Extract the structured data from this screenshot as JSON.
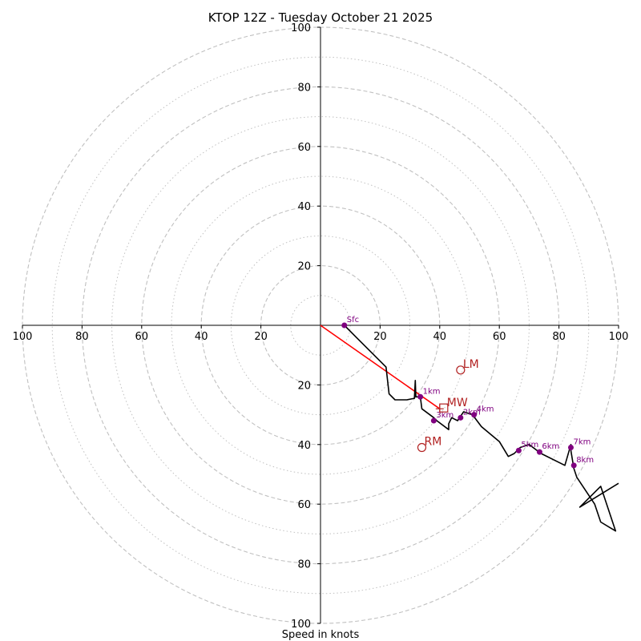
{
  "chart_data": {
    "type": "hodograph",
    "title": "KTOP 12Z - Tuesday October 21 2025",
    "xlabel": "Speed in knots",
    "axis_range": [
      -100,
      100
    ],
    "rings_major": [
      20,
      40,
      60,
      80,
      100
    ],
    "rings_minor": [
      10,
      30,
      50,
      70,
      90
    ],
    "x_ticks": [
      {
        "value": -100,
        "label": "100"
      },
      {
        "value": -80,
        "label": "80"
      },
      {
        "value": -60,
        "label": "60"
      },
      {
        "value": -40,
        "label": "40"
      },
      {
        "value": -20,
        "label": "20"
      },
      {
        "value": 20,
        "label": "20"
      },
      {
        "value": 40,
        "label": "40"
      },
      {
        "value": 60,
        "label": "60"
      },
      {
        "value": 80,
        "label": "80"
      },
      {
        "value": 100,
        "label": "100"
      }
    ],
    "y_ticks": [
      {
        "value": 100,
        "label": "100"
      },
      {
        "value": 80,
        "label": "80"
      },
      {
        "value": 60,
        "label": "60"
      },
      {
        "value": 40,
        "label": "40"
      },
      {
        "value": 20,
        "label": "20"
      },
      {
        "value": -20,
        "label": "20"
      },
      {
        "value": -40,
        "label": "40"
      },
      {
        "value": -60,
        "label": "60"
      },
      {
        "value": -80,
        "label": "80"
      },
      {
        "value": -100,
        "label": "100"
      }
    ],
    "hodograph_trace": [
      [
        8,
        0
      ],
      [
        12,
        -4
      ],
      [
        16,
        -8
      ],
      [
        22,
        -14
      ],
      [
        23,
        -23
      ],
      [
        25,
        -25
      ],
      [
        29,
        -25
      ],
      [
        31.5,
        -24.5
      ],
      [
        31.8,
        -18.5
      ],
      [
        32,
        -24
      ],
      [
        33.5,
        -24
      ],
      [
        34,
        -28
      ],
      [
        38,
        -31
      ],
      [
        39,
        -32
      ],
      [
        43,
        -35
      ],
      [
        43,
        -33
      ],
      [
        44,
        -31
      ],
      [
        46,
        -32
      ],
      [
        48,
        -29
      ],
      [
        51,
        -30
      ],
      [
        54,
        -34
      ],
      [
        60,
        -39
      ],
      [
        63,
        -44
      ],
      [
        65,
        -43
      ],
      [
        67,
        -41
      ],
      [
        70,
        -40
      ],
      [
        74,
        -43
      ],
      [
        82,
        -47
      ],
      [
        84,
        -40
      ],
      [
        84,
        -42
      ],
      [
        85,
        -48
      ],
      [
        86,
        -51
      ],
      [
        92,
        -60
      ],
      [
        94,
        -66
      ],
      [
        99,
        -69
      ],
      [
        94,
        -54
      ],
      [
        87,
        -61
      ],
      [
        100,
        -53
      ]
    ],
    "height_markers": [
      {
        "label": "Sfc",
        "u": 8,
        "v": 0
      },
      {
        "label": "1km",
        "u": 33.5,
        "v": -24
      },
      {
        "label": "2km",
        "u": 47,
        "v": -31
      },
      {
        "label": "3km",
        "u": 38,
        "v": -32
      },
      {
        "label": "4km",
        "u": 51.5,
        "v": -30
      },
      {
        "label": "5km",
        "u": 66.5,
        "v": -42
      },
      {
        "label": "6km",
        "u": 73.5,
        "v": -42.5
      },
      {
        "label": "7km",
        "u": 84,
        "v": -41
      },
      {
        "label": "8km",
        "u": 85,
        "v": -47
      }
    ],
    "storm_motion": {
      "mean_wind": {
        "label": "MW",
        "u": 40,
        "v": -28
      },
      "left_mover": {
        "label": "LM",
        "u": 47,
        "v": -15
      },
      "right_mover": {
        "label": "RM",
        "u": 34,
        "v": -41
      }
    },
    "colors": {
      "trace": "#000000",
      "markers": "#800080",
      "motion": "#b22222",
      "shear_vector": "#ff0000",
      "grid": "#c0c0c0"
    }
  }
}
